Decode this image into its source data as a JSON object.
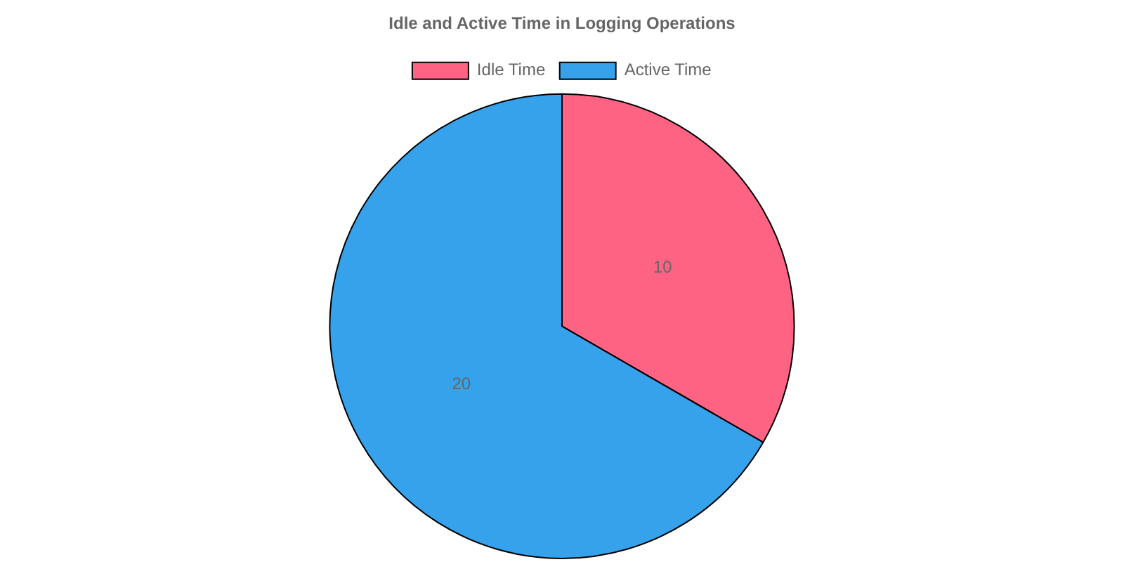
{
  "chart_data": {
    "type": "pie",
    "title": "Idle and Active Time in Logging Operations",
    "categories": [
      "Idle Time",
      "Active Time"
    ],
    "values": [
      10,
      20
    ],
    "colors": [
      "#ff6384",
      "#36a2eb"
    ],
    "legend": "top",
    "data_labels": true
  }
}
